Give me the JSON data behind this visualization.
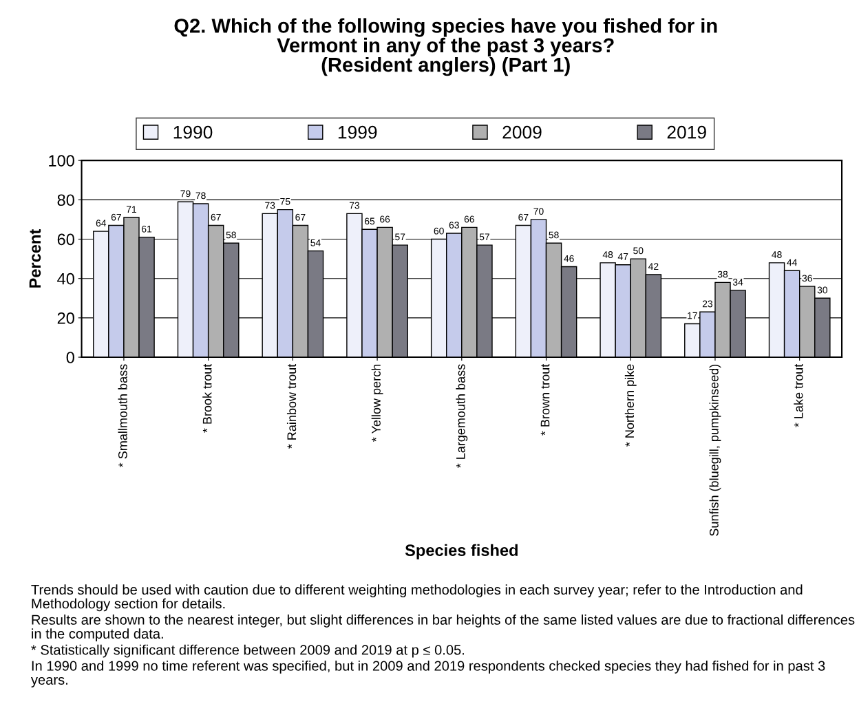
{
  "chart_data": {
    "type": "bar",
    "title": "Q2. Which of the following species have you fished for in\nVermont in any of the past 3 years?\n(Resident anglers) (Part 1)",
    "xlabel": "Species fished",
    "ylabel": "Percent",
    "categories": [
      "* Smallmouth bass",
      "* Brook trout",
      "* Rainbow trout",
      "* Yellow perch",
      "* Largemouth bass",
      "* Brown trout",
      "* Northern pike",
      "Sunfish (bluegill, pumpkinseed)",
      "* Lake trout"
    ],
    "series": [
      {
        "name": "1990",
        "color": "#eef0fa",
        "values": [
          64,
          79,
          73,
          73,
          60,
          67,
          48,
          17,
          48
        ]
      },
      {
        "name": "1999",
        "color": "#c5cbeb",
        "values": [
          67,
          78,
          75,
          65,
          63,
          70,
          47,
          23,
          44
        ]
      },
      {
        "name": "2009",
        "color": "#b0b0b0",
        "values": [
          71,
          67,
          67,
          66,
          66,
          58,
          50,
          38,
          36
        ]
      },
      {
        "name": "2019",
        "color": "#7a7a84",
        "values": [
          61,
          58,
          54,
          57,
          57,
          46,
          42,
          34,
          30
        ]
      }
    ],
    "ylim": [
      0,
      100
    ],
    "yticks": [
      0,
      20,
      40,
      60,
      80,
      100
    ],
    "grid": "y",
    "legend": "top",
    "data_labels": true,
    "annotations": [
      "Trends should be used with caution due to different weighting methodologies in each survey year; refer to the Introduction and Methodology section for details.",
      "Results are shown to the nearest integer, but slight differences in bar heights of the same listed values are due to fractional differences in the computed data.",
      "* Statistically significant difference between 2009 and 2019 at p ≤ 0.05.",
      "In 1990 and 1999 no time referent was specified, but in 2009 and 2019 respondents checked species they had fished for in past 3 years."
    ]
  }
}
